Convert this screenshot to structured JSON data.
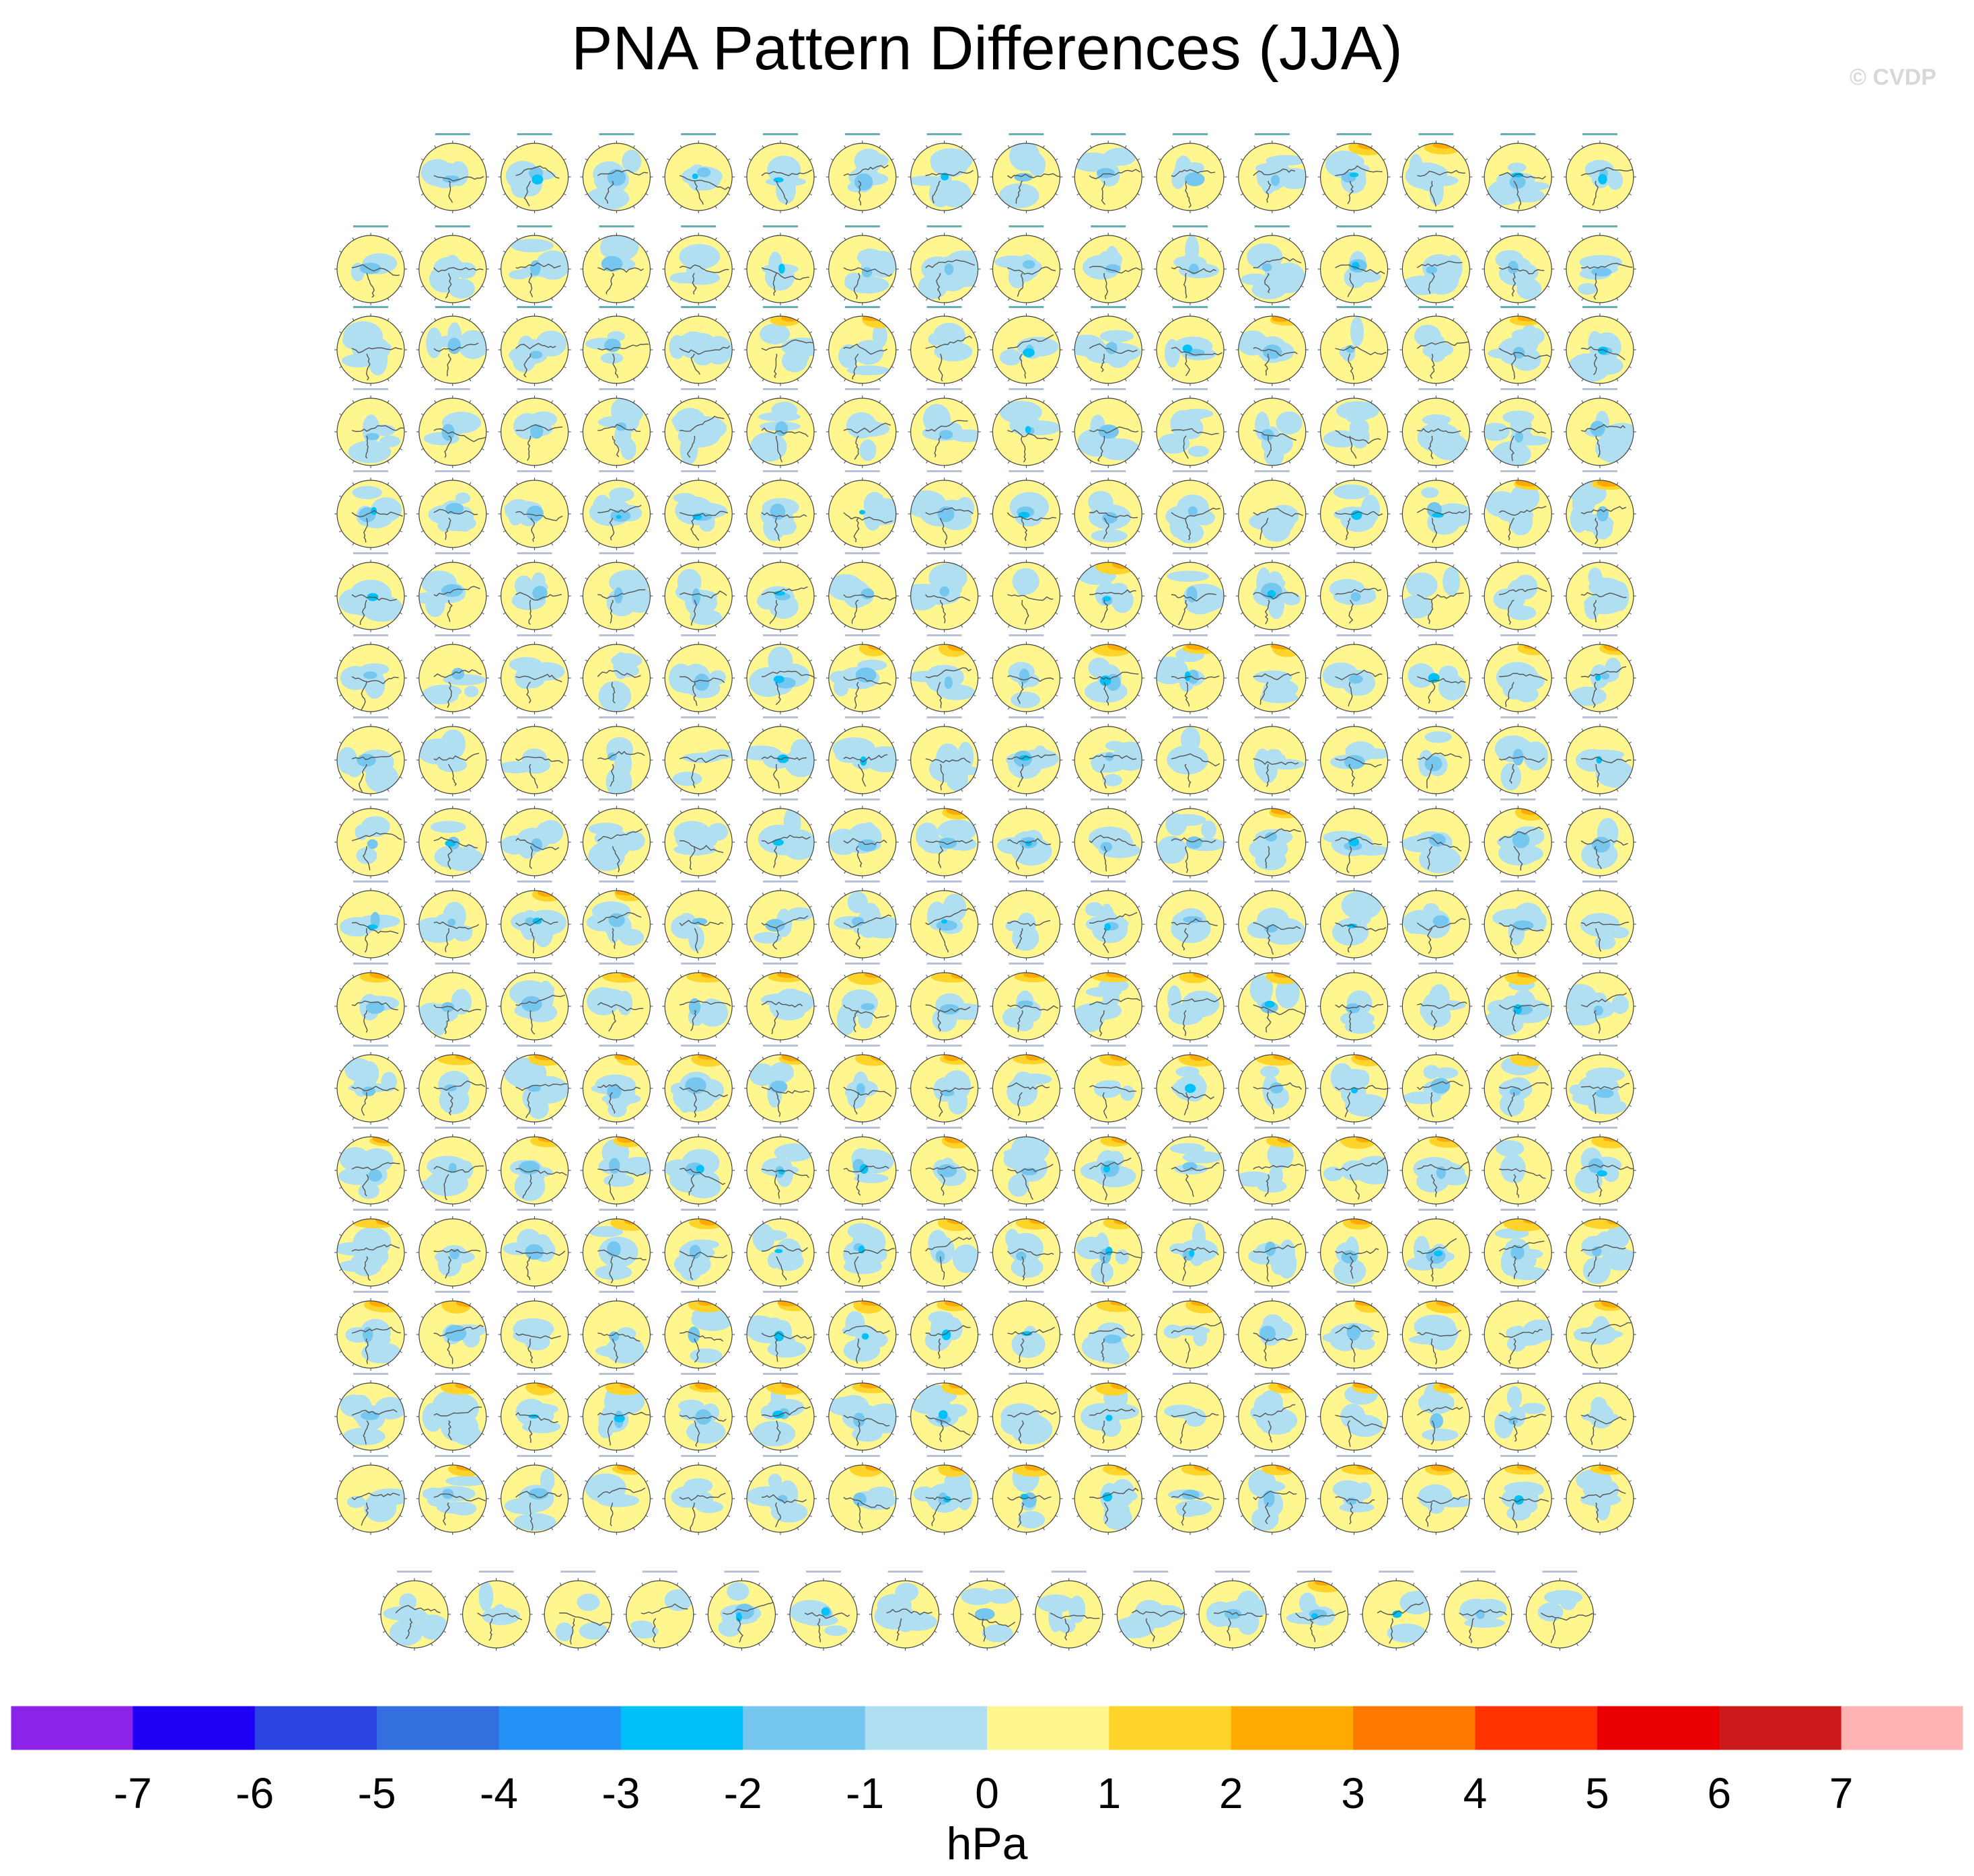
{
  "title": "PNA Pattern Differences (JJA)",
  "watermark": "© CVDP",
  "colors": {
    "land_outline": "#555555",
    "panel_border": "#444444"
  },
  "chart_data": {
    "type": "heatmap",
    "title": "PNA Pattern Differences (JJA)",
    "description_of_panels": "",
    "grid_rows": [
      15,
      16,
      16,
      16,
      16,
      16,
      16,
      16,
      16,
      16,
      16,
      16,
      16,
      16,
      16,
      16,
      16,
      15
    ],
    "colorbar": {
      "unit": "hPa",
      "tick_labels": [
        "-7",
        "-6",
        "-5",
        "-4",
        "-3",
        "-2",
        "-1",
        "0",
        "1",
        "2",
        "3",
        "4",
        "5",
        "6",
        "7"
      ],
      "bins": [
        {
          "range": "< -7",
          "color": "#8b23e8"
        },
        {
          "range": "-7 to -6",
          "color": "#1e00f5"
        },
        {
          "range": "-6 to -5",
          "color": "#2c44e2"
        },
        {
          "range": "-5 to -4",
          "color": "#3270df"
        },
        {
          "range": "-4 to -3",
          "color": "#2391f5"
        },
        {
          "range": "-3 to -2",
          "color": "#00c0f8"
        },
        {
          "range": "-2 to -1",
          "color": "#76c7f0"
        },
        {
          "range": "-1 to 0",
          "color": "#b0dff1"
        },
        {
          "range": "0 to 1",
          "color": "#fff68f"
        },
        {
          "range": "1 to 2",
          "color": "#ffd42a"
        },
        {
          "range": "2 to 3",
          "color": "#ffaa00"
        },
        {
          "range": "3 to 4",
          "color": "#ff7a00"
        },
        {
          "range": "4 to 5",
          "color": "#ff3200"
        },
        {
          "range": "5 to 6",
          "color": "#e80000"
        },
        {
          "range": "6 to 7",
          "color": "#cc1a1a"
        },
        {
          "range": "> 7",
          "color": "#ffb3b3"
        }
      ]
    }
  }
}
